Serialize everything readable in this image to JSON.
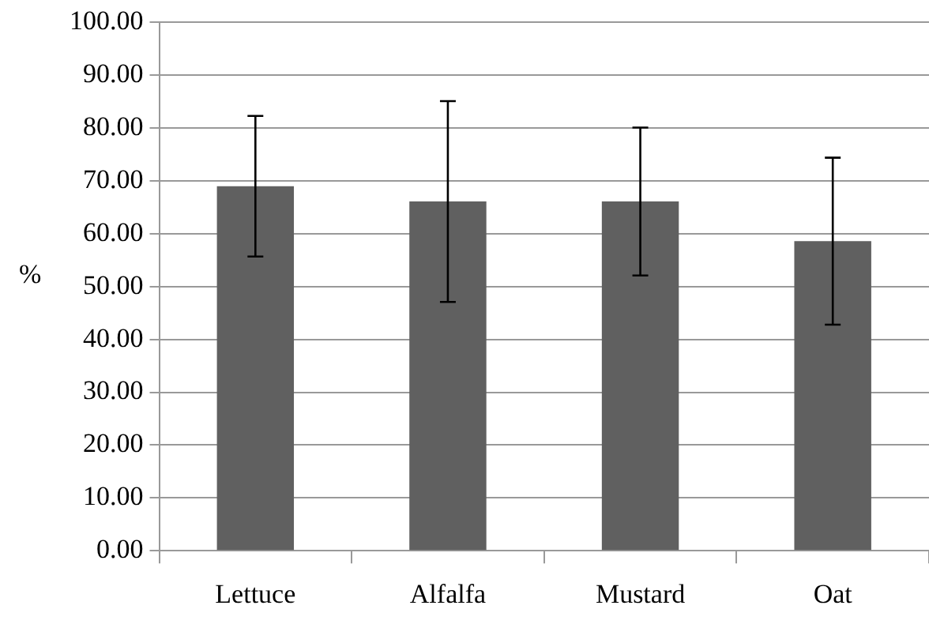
{
  "chart_data": {
    "type": "bar",
    "ylabel": "%",
    "categories": [
      "Lettuce",
      "Alfalfa",
      "Mustard",
      "Oat"
    ],
    "values": [
      69.0,
      66.1,
      66.1,
      58.6
    ],
    "errors": [
      13.3,
      19.0,
      14.0,
      15.8
    ],
    "color": "#606060",
    "ylim": [
      0,
      100
    ],
    "yticks": [
      {
        "value": 0,
        "label": "0.00"
      },
      {
        "value": 10,
        "label": "10.00"
      },
      {
        "value": 20,
        "label": "20.00"
      },
      {
        "value": 30,
        "label": "30.00"
      },
      {
        "value": 40,
        "label": "40.00"
      },
      {
        "value": 50,
        "label": "50.00"
      },
      {
        "value": 60,
        "label": "60.00"
      },
      {
        "value": 70,
        "label": "70.00"
      },
      {
        "value": 80,
        "label": "80.00"
      },
      {
        "value": 90,
        "label": "90.00"
      },
      {
        "value": 100,
        "label": "100.00"
      }
    ],
    "grid": "y",
    "legend": false
  }
}
